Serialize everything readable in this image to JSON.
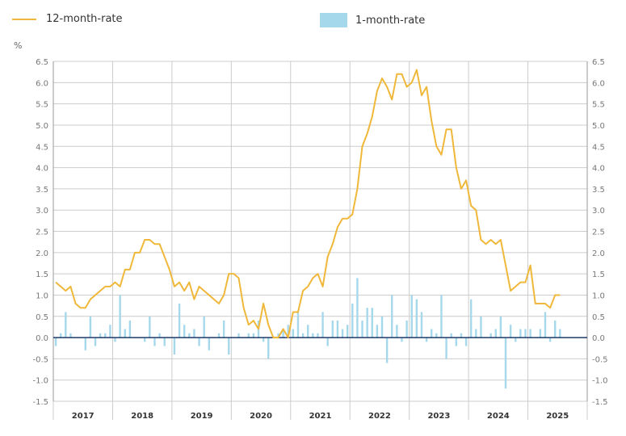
{
  "legend": {
    "line": "12-month-rate",
    "bar": "1-month-rate"
  },
  "colors": {
    "line": "#f0b83a",
    "bar": "#a6d8ec",
    "zero": "#1f3a6a",
    "grid": "#cccccc"
  },
  "chart_data": {
    "type": "line+bar",
    "ylabel": "%",
    "ylim": [
      -1.5,
      6.5
    ],
    "yticks": [
      "6.5",
      "6.0",
      "5.5",
      "5.0",
      "4.5",
      "4.0",
      "3.5",
      "3.0",
      "2.5",
      "2.0",
      "1.5",
      "1.0",
      "0.5",
      "0.0",
      "-0.5",
      "-1.0",
      "-1.5"
    ],
    "years": [
      "2017",
      "2018",
      "2019",
      "2020",
      "2021",
      "2022",
      "2023",
      "2024",
      "2025"
    ],
    "start": "2017-01",
    "series": [
      {
        "name": "12-month-rate",
        "type": "line",
        "values": [
          1.3,
          1.2,
          1.1,
          1.2,
          0.8,
          0.7,
          0.7,
          0.9,
          1.0,
          1.1,
          1.2,
          1.2,
          1.3,
          1.2,
          1.6,
          1.6,
          2.0,
          2.0,
          2.3,
          2.3,
          2.2,
          2.2,
          1.9,
          1.6,
          1.2,
          1.3,
          1.1,
          1.3,
          0.9,
          1.2,
          1.1,
          1.0,
          0.9,
          0.8,
          1.0,
          1.5,
          1.5,
          1.4,
          0.7,
          0.3,
          0.4,
          0.2,
          0.8,
          0.3,
          0.0,
          0.0,
          0.2,
          0.0,
          0.6,
          0.6,
          1.1,
          1.2,
          1.4,
          1.5,
          1.2,
          1.9,
          2.2,
          2.6,
          2.8,
          2.8,
          2.9,
          3.5,
          4.5,
          4.8,
          5.2,
          5.8,
          6.1,
          5.9,
          5.6,
          6.2,
          6.2,
          5.9,
          6.0,
          6.3,
          5.7,
          5.9,
          5.1,
          4.5,
          4.3,
          4.9,
          4.9,
          4.0,
          3.5,
          3.7,
          3.1,
          3.0,
          2.3,
          2.2,
          2.3,
          2.2,
          2.3,
          1.7,
          1.1,
          1.2,
          1.3,
          1.3,
          1.7,
          0.8,
          0.8,
          0.8,
          0.7,
          1.0,
          1.0
        ]
      },
      {
        "name": "1-month-rate",
        "type": "bar",
        "values": [
          -0.2,
          0.1,
          0.6,
          0.1,
          0,
          0,
          -0.3,
          0.5,
          -0.2,
          0.1,
          0.1,
          0.3,
          -0.1,
          1.0,
          0.2,
          0.4,
          0,
          0,
          -0.1,
          0.5,
          -0.2,
          0.1,
          -0.2,
          0,
          -0.4,
          0.8,
          0.3,
          0.1,
          0.2,
          -0.2,
          0.5,
          -0.3,
          0,
          0.1,
          0.4,
          -0.4,
          0,
          0.1,
          0,
          0.1,
          0.1,
          0.4,
          -0.1,
          -0.5,
          0,
          0.1,
          0.2,
          0.3,
          0.2,
          0.6,
          0.1,
          0.3,
          0.1,
          0.1,
          0.6,
          -0.2,
          0.4,
          0.4,
          0.2,
          0.3,
          0.8,
          1.4,
          0.4,
          0.7,
          0.7,
          0.3,
          0.5,
          -0.6,
          1.0,
          0.3,
          -0.1,
          0.4,
          1.0,
          0.9,
          0.6,
          -0.1,
          0.2,
          0.1,
          1.0,
          -0.5,
          0.1,
          -0.2,
          0.1,
          -0.2,
          0.9,
          0.2,
          0.5,
          0,
          0.1,
          0.2,
          0.5,
          -1.2,
          0.3,
          -0.1,
          0.2,
          0.2,
          0.2,
          0,
          0.2,
          0.6,
          -0.1,
          0.4,
          0.2
        ]
      }
    ]
  }
}
